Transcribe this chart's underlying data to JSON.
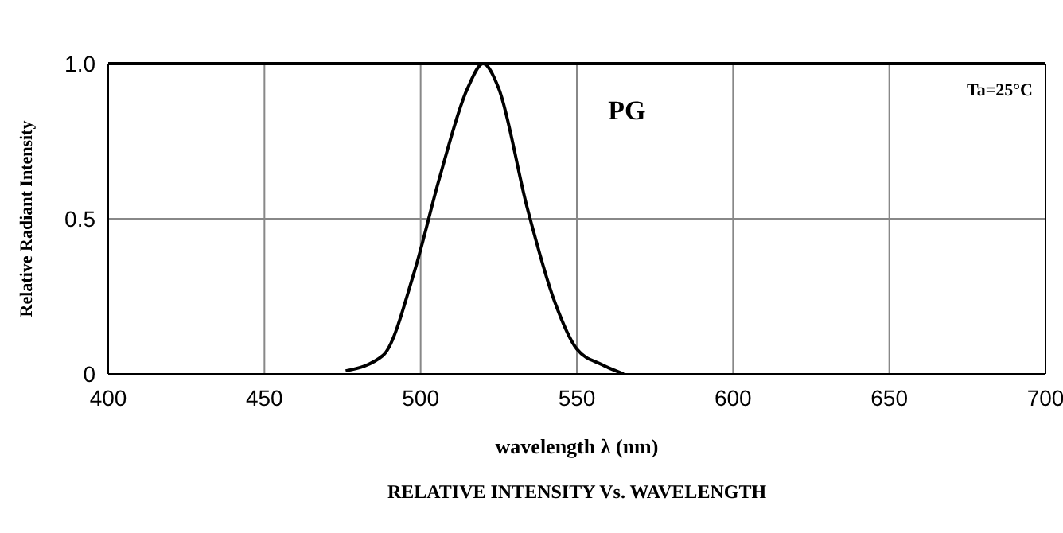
{
  "chart_data": {
    "type": "line",
    "xlabel": "wavelength λ (nm)",
    "ylabel": "Relative Radiant Intensity",
    "annotations": [
      "Ta=25°C",
      "RELATIVE INTENSITY Vs. WAVELENGTH"
    ],
    "xlim": [
      400,
      700
    ],
    "xticks": [
      400,
      450,
      500,
      550,
      600,
      650,
      700
    ],
    "ylim": [
      0,
      1
    ],
    "yticks": [
      0,
      0.5,
      {
        "value": 1,
        "label": "1.0"
      }
    ],
    "grid": true,
    "series": [
      {
        "name": "PG",
        "color": "#000000",
        "x": [
          476,
          488,
          498,
          506,
          515,
          520,
          525,
          534,
          543,
          550,
          558,
          565
        ],
        "values": [
          0.01,
          0.06,
          0.33,
          0.63,
          0.92,
          1.0,
          0.92,
          0.54,
          0.23,
          0.08,
          0.03,
          0.0
        ]
      }
    ]
  }
}
